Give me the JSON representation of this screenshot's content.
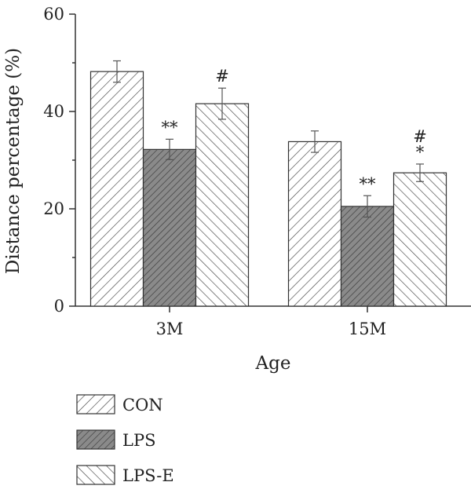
{
  "chart_data": {
    "type": "bar",
    "title": "",
    "xlabel": "Age",
    "ylabel": "Distance percentage (%)",
    "categories": [
      "3M",
      "15M"
    ],
    "ylim": [
      0,
      60
    ],
    "yticks": [
      0,
      20,
      40,
      60
    ],
    "series": [
      {
        "name": "CON",
        "values": [
          48.2,
          33.8
        ],
        "errors": [
          2.2,
          2.2
        ],
        "pattern": "diag-right",
        "fill": "#ffffff"
      },
      {
        "name": "LPS",
        "values": [
          32.2,
          20.5
        ],
        "errors": [
          2.1,
          2.2
        ],
        "pattern": "diag-right",
        "fill": "#8a8a8a"
      },
      {
        "name": "LPS-E",
        "values": [
          41.6,
          27.4
        ],
        "errors": [
          3.2,
          1.8
        ],
        "pattern": "diag-left",
        "fill": "#ffffff"
      }
    ],
    "annotations": [
      {
        "series": 1,
        "category": 0,
        "lines": [
          "**"
        ]
      },
      {
        "series": 2,
        "category": 0,
        "lines": [
          "#"
        ]
      },
      {
        "series": 1,
        "category": 1,
        "lines": [
          "**"
        ]
      },
      {
        "series": 2,
        "category": 1,
        "lines": [
          "#",
          "*"
        ]
      }
    ],
    "legend_position": "bottom-left",
    "grid": false
  }
}
